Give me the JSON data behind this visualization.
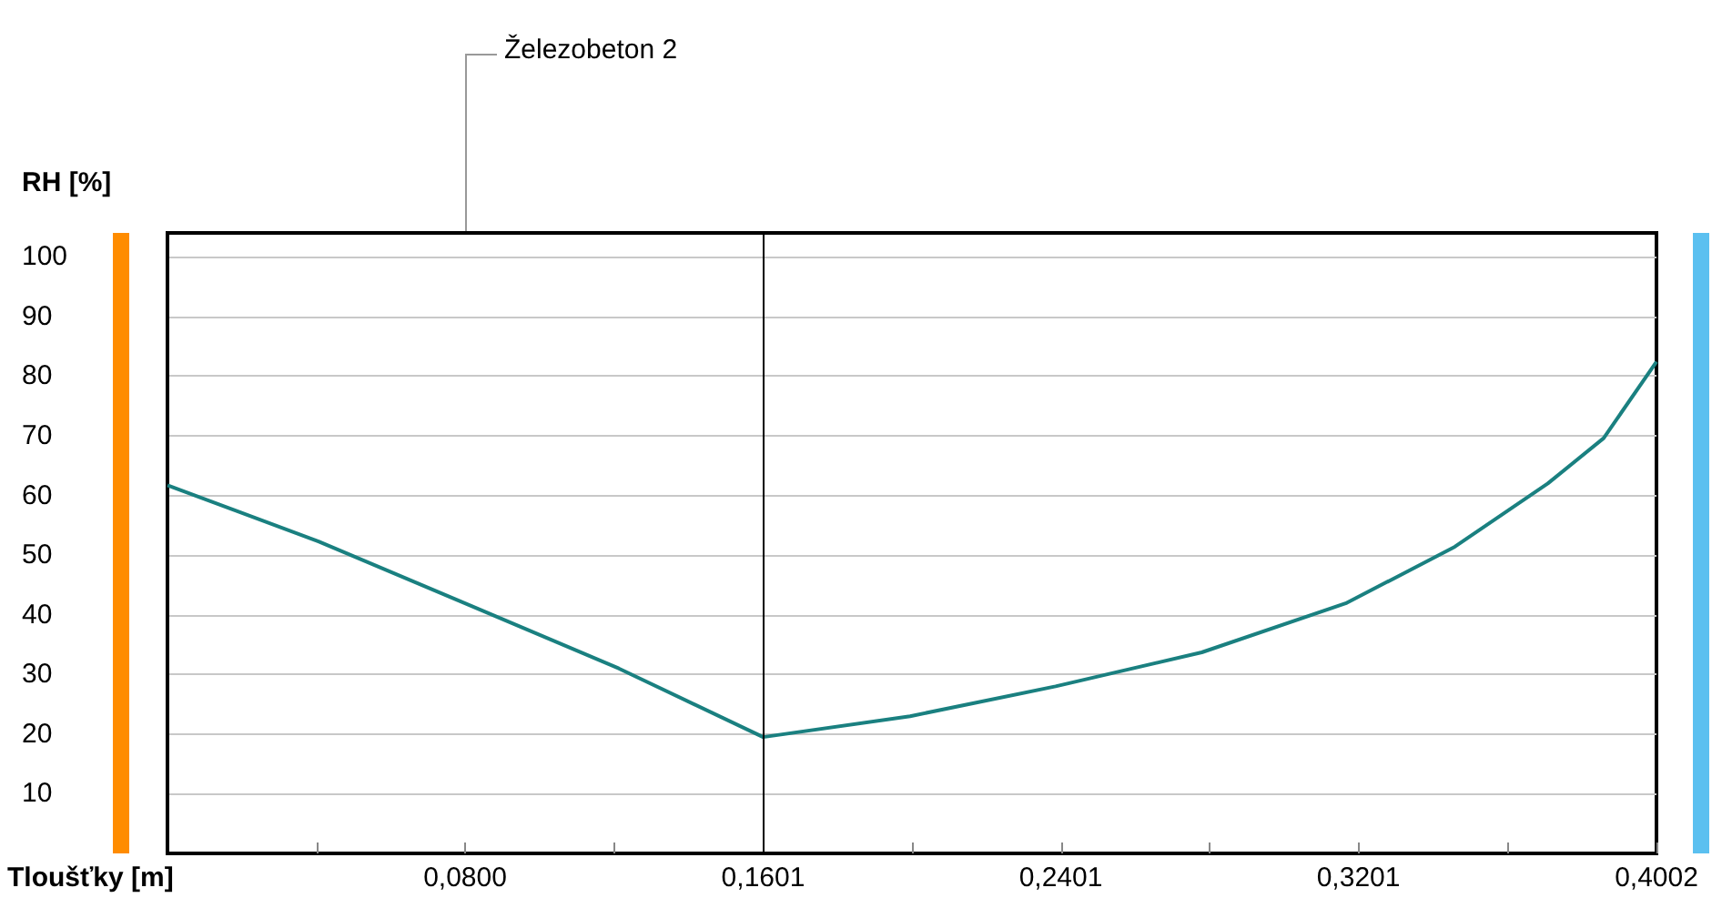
{
  "chart_data": {
    "type": "line",
    "xlabel": "Tloušťky [m]",
    "ylabel": "RH [%]",
    "annotations": [
      "Železobeton 2"
    ],
    "x": [
      0,
      0.0406,
      0.0797,
      0.1213,
      0.1601,
      0.1996,
      0.2387,
      0.278,
      0.317,
      0.346,
      0.371,
      0.386,
      0.4002
    ],
    "series": [
      {
        "color": "#1a8080",
        "values": [
          61.7,
          52.3,
          42,
          31,
          19.5,
          23,
          28,
          33.7,
          42,
          51.4,
          62,
          69.6,
          82.4
        ]
      }
    ],
    "xlim": [
      0,
      0.4002
    ],
    "xticks": [
      {
        "value": 0.04,
        "label": null
      },
      {
        "value": 0.08,
        "label": "0,0800"
      },
      {
        "value": 0.1201,
        "label": null
      },
      {
        "value": 0.1601,
        "label": "0,1601"
      },
      {
        "value": 0.2001,
        "label": null
      },
      {
        "value": 0.2401,
        "label": "0,2401"
      },
      {
        "value": 0.2801,
        "label": null
      },
      {
        "value": 0.3201,
        "label": "0,3201"
      },
      {
        "value": 0.3602,
        "label": null
      },
      {
        "value": 0.4002,
        "label": "0,4002"
      }
    ],
    "ylim": [
      0,
      104
    ],
    "yticks": [
      10,
      20,
      30,
      40,
      50,
      60,
      70,
      80,
      90,
      100
    ],
    "ref_lines": [
      {
        "axis": "x",
        "value": 0.1601,
        "color": "#000000"
      }
    ],
    "grid": "y",
    "marker": "none",
    "line_style": "solid"
  }
}
